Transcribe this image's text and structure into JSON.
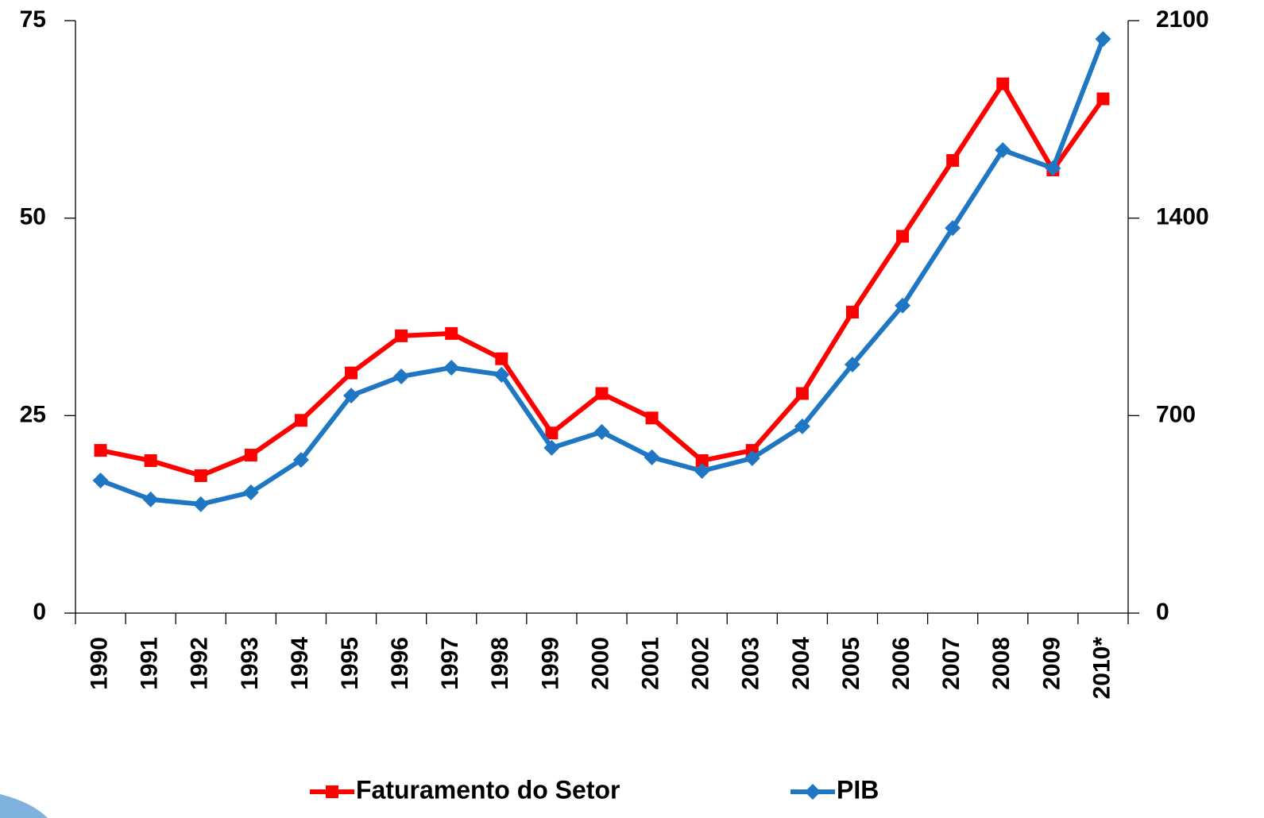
{
  "chart_data": {
    "type": "line",
    "categories": [
      "1990",
      "1991",
      "1992",
      "1993",
      "1994",
      "1995",
      "1996",
      "1997",
      "1998",
      "1999",
      "2000",
      "2001",
      "2002",
      "2003",
      "2004",
      "2005",
      "2006",
      "2007",
      "2008",
      "2009",
      "2010*"
    ],
    "series": [
      {
        "name": "Faturamento do Setor",
        "color": "#ff0000",
        "marker": "square",
        "values": [
          20.6,
          19.3,
          17.4,
          20.0,
          24.4,
          30.4,
          35.1,
          35.4,
          32.2,
          22.8,
          27.8,
          24.7,
          19.3,
          20.6,
          27.8,
          38.1,
          47.7,
          57.3,
          67.0,
          56.1,
          65.1
        ]
      },
      {
        "name": "PIB",
        "color": "#1f77c4",
        "marker": "diamond",
        "axis": "y2",
        "values": [
          470,
          403,
          386,
          428,
          543,
          771,
          839,
          870,
          845,
          586,
          642,
          552,
          504,
          549,
          662,
          881,
          1090,
          1365,
          1641,
          1577,
          2035
        ]
      }
    ],
    "ylim": [
      0,
      75
    ],
    "yticks": [
      0,
      25,
      50,
      75
    ],
    "y2lim": [
      0,
      2100
    ],
    "y2ticks": [
      0,
      700,
      1400,
      2100
    ],
    "grid": false
  }
}
